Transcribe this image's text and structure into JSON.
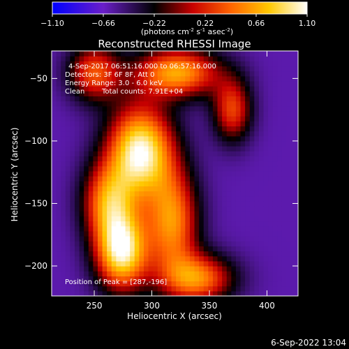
{
  "chart_data": {
    "type": "heatmap",
    "title": "Reconstructed RHESSI Image",
    "xlabel": "Heliocentric X (arcsec)",
    "ylabel": "Heliocentric Y (arcsec)",
    "xlim": [
      213,
      427
    ],
    "ylim": [
      -224,
      -28
    ],
    "x_ticks": [
      250,
      300,
      350,
      400
    ],
    "y_ticks": [
      -50,
      -100,
      -150,
      -200
    ],
    "colorbar": {
      "label_parts": {
        "a": "(photons cm",
        "b": "-2",
        "c": " s",
        "d": "-1",
        "e": " asec",
        "f": "-2",
        "g": ")"
      },
      "min": -1.1,
      "max": 1.1,
      "tick_labels": [
        "−1.10",
        "−0.66",
        "−0.22",
        "0.22",
        "0.66",
        "1.10"
      ]
    },
    "annotations": {
      "time_range": "4-Sep-2017 06:51:16.000 to 06:57:16.000",
      "detectors": "Detectors: 3F 6F 8F, Att 0",
      "energy": "Energy Range: 3.0 - 6.0 keV",
      "clean": "Clean",
      "counts": "Total counts: 7.91E+04",
      "peak": "Position of Peak = [287,-196]"
    },
    "sources": [
      {
        "x": 290,
        "y": -108,
        "sx": 20,
        "sy": 26,
        "amp": 1.05
      },
      {
        "x": 274,
        "y": -188,
        "sx": 16,
        "sy": 22,
        "amp": 1.0
      },
      {
        "x": 322,
        "y": -45,
        "sx": 26,
        "sy": 14,
        "amp": 0.65
      },
      {
        "x": 318,
        "y": -165,
        "sx": 16,
        "sy": 30,
        "amp": 0.55
      },
      {
        "x": 340,
        "y": -210,
        "sx": 22,
        "sy": 14,
        "amp": 0.5
      },
      {
        "x": 262,
        "y": -148,
        "sx": 16,
        "sy": 22,
        "amp": 0.45
      },
      {
        "x": 250,
        "y": -45,
        "sx": 16,
        "sy": 16,
        "amp": 0.35
      },
      {
        "x": 370,
        "y": -75,
        "sx": 12,
        "sy": 18,
        "amp": 0.3
      }
    ],
    "background_level": -0.6
  },
  "timestamp": "6-Sep-2022 13:04"
}
